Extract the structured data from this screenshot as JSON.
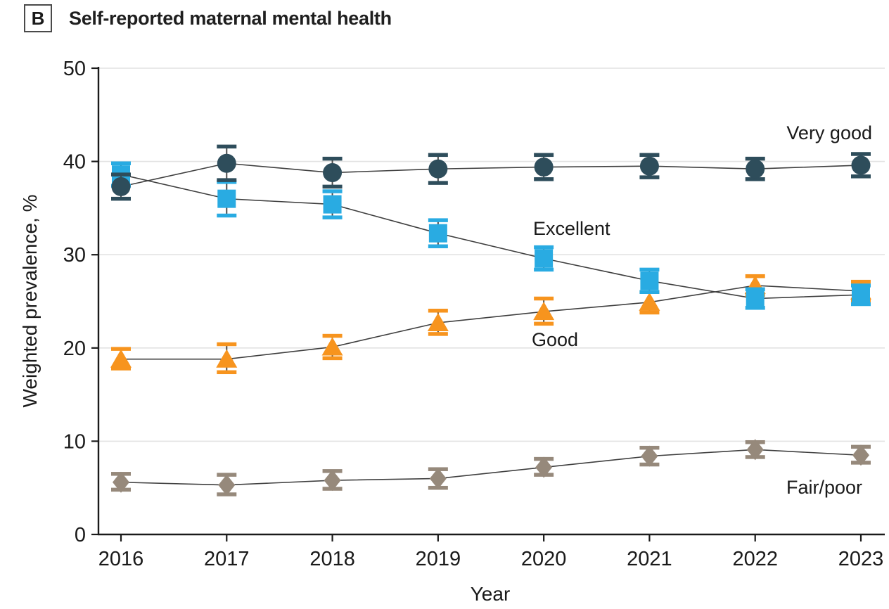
{
  "panel": {
    "label": "B",
    "title": "Self-reported maternal mental health"
  },
  "colors": {
    "very_good": "#2e4d5b",
    "excellent": "#29abe2",
    "good": "#f7941e",
    "fair_poor": "#96897b",
    "series_line": "#3f3f3f",
    "error_line": "#4a4a4a",
    "grid": "#e2e2e2",
    "axis": "#1a1a1a",
    "background": "#ffffff"
  },
  "chart_data": {
    "type": "line",
    "title": "Self-reported maternal mental health",
    "xlabel": "Year",
    "ylabel": "Weighted prevalence, %",
    "ylim": [
      0,
      50
    ],
    "yticks": [
      0,
      10,
      20,
      30,
      40,
      50
    ],
    "grid": "horizontal",
    "legend_position": "inline-annotations",
    "error_bars": true,
    "categories": [
      "2016",
      "2017",
      "2018",
      "2019",
      "2020",
      "2021",
      "2022",
      "2023"
    ],
    "series": [
      {
        "name": "Very good",
        "marker": "circle",
        "color": "#2e4d5b",
        "values": [
          37.3,
          39.8,
          38.8,
          39.2,
          39.4,
          39.5,
          39.2,
          39.6
        ],
        "ci_low": [
          36.0,
          38.0,
          37.3,
          37.7,
          38.1,
          38.3,
          38.1,
          38.4
        ],
        "ci_high": [
          38.6,
          41.6,
          40.3,
          40.7,
          40.7,
          40.7,
          40.3,
          40.8
        ]
      },
      {
        "name": "Excellent",
        "marker": "square",
        "color": "#29abe2",
        "values": [
          38.6,
          36.0,
          35.4,
          32.3,
          29.6,
          27.2,
          25.3,
          25.7
        ],
        "ci_low": [
          37.4,
          34.2,
          34.0,
          30.9,
          28.4,
          26.0,
          24.3,
          24.7
        ],
        "ci_high": [
          39.8,
          37.8,
          36.8,
          33.7,
          30.8,
          28.4,
          26.3,
          26.7
        ]
      },
      {
        "name": "Good",
        "marker": "triangle",
        "color": "#f7941e",
        "values": [
          18.8,
          18.8,
          20.1,
          22.7,
          23.9,
          24.9,
          26.7,
          26.1
        ],
        "ci_low": [
          17.8,
          17.4,
          18.9,
          21.5,
          22.6,
          23.8,
          25.7,
          25.1
        ],
        "ci_high": [
          19.9,
          20.4,
          21.3,
          24.0,
          25.3,
          26.0,
          27.7,
          27.1
        ]
      },
      {
        "name": "Fair/poor",
        "marker": "diamond",
        "color": "#96897b",
        "values": [
          5.6,
          5.3,
          5.8,
          6.0,
          7.2,
          8.4,
          9.1,
          8.5
        ],
        "ci_low": [
          4.8,
          4.3,
          4.9,
          5.0,
          6.4,
          7.5,
          8.3,
          7.7
        ],
        "ci_high": [
          6.5,
          6.4,
          6.8,
          7.0,
          8.1,
          9.3,
          9.9,
          9.4
        ]
      }
    ],
    "annotations": [
      {
        "text": "Very good"
      },
      {
        "text": "Excellent"
      },
      {
        "text": "Good"
      },
      {
        "text": "Fair/poor"
      }
    ]
  }
}
